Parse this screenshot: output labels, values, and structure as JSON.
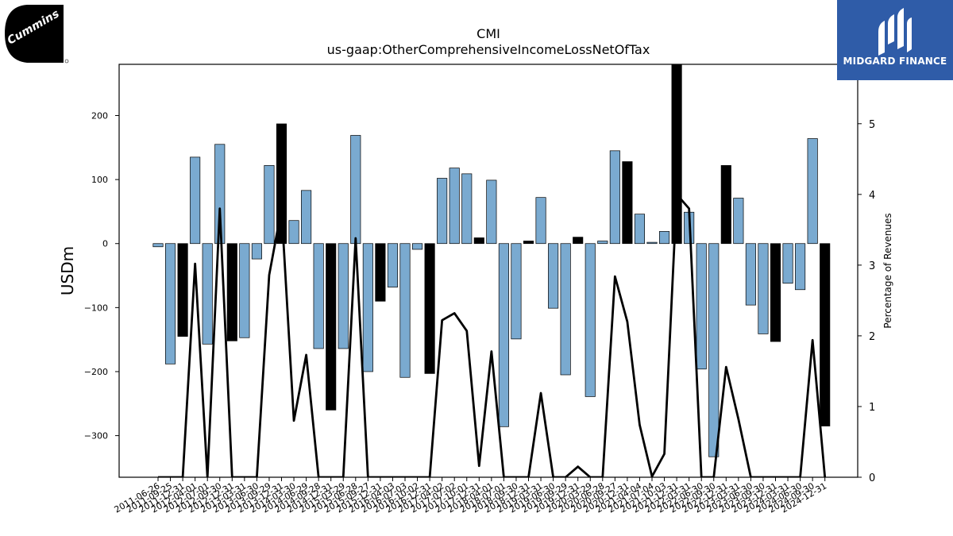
{
  "logos": {
    "left_text": "Cummins",
    "right_text": "MIDGARD FINANCE"
  },
  "colors": {
    "bar_fill": "#7aaad0",
    "bar_q4_fill": "#000000",
    "line": "#000000",
    "right_logo_bg": "#2f5ca8"
  },
  "chart_data": {
    "type": "bar",
    "title": "CMI",
    "subtitle": "us-gaap:OtherComprehensiveIncomeLossNetOfTax",
    "ylabel": "USDm",
    "y2label": "Percentage of Revenues",
    "ylim": [
      -365,
      280
    ],
    "y2lim": [
      0,
      5.84
    ],
    "yticks": [
      200,
      100,
      0,
      -100,
      -200,
      -300
    ],
    "y2ticks": [
      0,
      1,
      2,
      3,
      4,
      5
    ],
    "grid": false,
    "categories": [
      "2011-06-26",
      "2011-09-25",
      "2011-12-31",
      "2012-04-01",
      "2012-07-01",
      "2012-09-30",
      "2012-12-31",
      "2013-03-31",
      "2013-06-30",
      "2013-09-29",
      "2013-12-31",
      "2014-03-30",
      "2014-06-29",
      "2014-09-28",
      "2014-12-31",
      "2015-03-29",
      "2015-06-28",
      "2015-09-27",
      "2015-12-31",
      "2016-04-03",
      "2016-07-03",
      "2016-10-02",
      "2016-12-31",
      "2017-04-02",
      "2017-07-02",
      "2017-10-01",
      "2017-12-31",
      "2018-04-01",
      "2018-07-01",
      "2018-09-30",
      "2018-12-31",
      "2019-03-31",
      "2019-06-30",
      "2019-09-29",
      "2019-12-31",
      "2020-03-29",
      "2020-06-28",
      "2020-09-27",
      "2020-12-31",
      "2021-04-04",
      "2021-07-04",
      "2021-10-03",
      "2021-12-31",
      "2022-03-31",
      "2022-06-30",
      "2022-09-30",
      "2022-12-31",
      "2023-03-31",
      "2023-06-30",
      "2023-09-30",
      "2023-12-31",
      "2024-03-31",
      "2024-06-30",
      "2024-09-30",
      "2024-12-31"
    ],
    "series": [
      {
        "kind": "bar",
        "axis": "left",
        "values": [
          -5,
          -188,
          -145,
          135,
          -157,
          155,
          -152,
          -147,
          -24,
          122,
          187,
          36,
          83,
          -164,
          -260,
          -164,
          169,
          -200,
          -90,
          -68,
          -209,
          -9,
          -203,
          102,
          118,
          109,
          9,
          99,
          -286,
          -149,
          4,
          72,
          -101,
          -205,
          10,
          -239,
          4,
          145,
          128,
          46,
          2,
          19,
          283,
          49,
          -196,
          -333,
          122,
          71,
          -96,
          -141,
          -153,
          -62,
          -72,
          164,
          -285
        ],
        "annual": [
          false,
          false,
          true,
          false,
          false,
          false,
          true,
          false,
          false,
          false,
          true,
          false,
          false,
          false,
          true,
          false,
          false,
          false,
          true,
          false,
          false,
          false,
          true,
          false,
          false,
          false,
          true,
          false,
          false,
          false,
          true,
          false,
          false,
          false,
          true,
          false,
          false,
          false,
          true,
          false,
          false,
          false,
          true,
          false,
          false,
          false,
          true,
          false,
          false,
          false,
          true,
          false,
          false,
          false,
          true
        ]
      },
      {
        "kind": "line",
        "axis": "right",
        "values": [
          0,
          0,
          0,
          3.02,
          0,
          3.8,
          0,
          0,
          0,
          2.86,
          3.8,
          0.8,
          1.73,
          0,
          0,
          0,
          3.38,
          0,
          0,
          0,
          0,
          0,
          0,
          2.22,
          2.32,
          2.07,
          0.16,
          1.78,
          0,
          0,
          0,
          1.19,
          0,
          0,
          0.15,
          0,
          0,
          2.84,
          2.2,
          0.74,
          0.01,
          0.33,
          4.0,
          3.8,
          0,
          0,
          1.56,
          0.82,
          0,
          0,
          0,
          0,
          0,
          1.94,
          0
        ]
      }
    ]
  }
}
